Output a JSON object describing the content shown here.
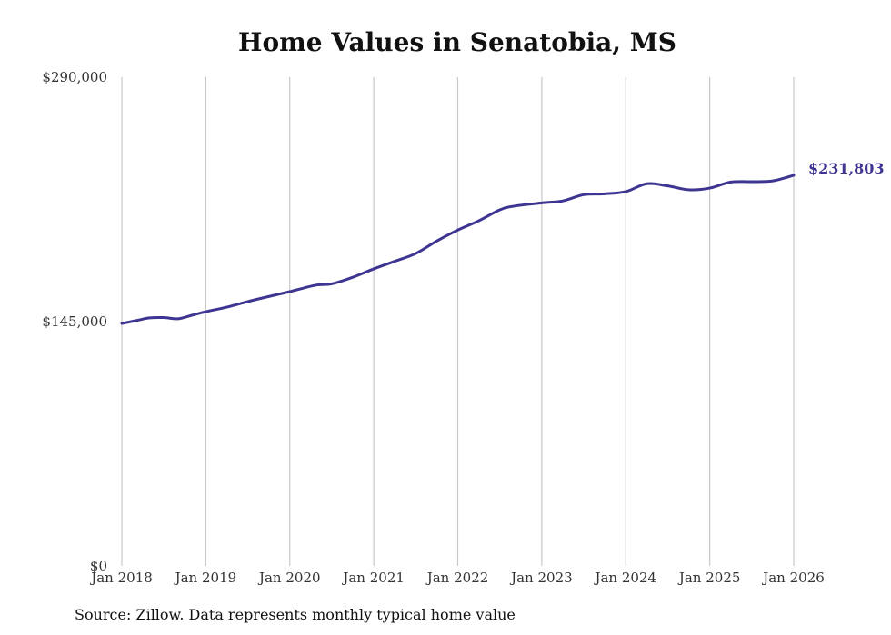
{
  "chart_data": {
    "type": "line",
    "title": "Home Values in Senatobia, MS",
    "source": "Source: Zillow. Data represents monthly typical home value",
    "xlabel": "",
    "ylabel": "",
    "ylim": [
      0,
      290000
    ],
    "xlim": [
      2018.0,
      2026.0
    ],
    "grid": "vertical",
    "yticks": [
      {
        "value": 0,
        "label": "$0"
      },
      {
        "value": 145000,
        "label": "$145,000"
      },
      {
        "value": 290000,
        "label": "$290,000"
      }
    ],
    "xticks": [
      {
        "value": 2018,
        "label": "Jan 2018"
      },
      {
        "value": 2019,
        "label": "Jan 2019"
      },
      {
        "value": 2020,
        "label": "Jan 2020"
      },
      {
        "value": 2021,
        "label": "Jan 2021"
      },
      {
        "value": 2022,
        "label": "Jan 2022"
      },
      {
        "value": 2023,
        "label": "Jan 2023"
      },
      {
        "value": 2024,
        "label": "Jan 2024"
      },
      {
        "value": 2025,
        "label": "Jan 2025"
      },
      {
        "value": 2026,
        "label": "Jan 2026"
      }
    ],
    "series": [
      {
        "name": "Typical home value",
        "color": "#3d3591",
        "end_label": "$231,803",
        "x": [
          2018.0,
          2018.17,
          2018.33,
          2018.5,
          2018.67,
          2018.83,
          2019.0,
          2019.25,
          2019.5,
          2019.75,
          2020.0,
          2020.17,
          2020.33,
          2020.5,
          2020.75,
          2021.0,
          2021.25,
          2021.5,
          2021.75,
          2022.0,
          2022.25,
          2022.5,
          2022.67,
          2023.0,
          2023.25,
          2023.5,
          2023.75,
          2024.0,
          2024.25,
          2024.5,
          2024.75,
          2025.0,
          2025.25,
          2025.5,
          2025.75,
          2026.0
        ],
        "y": [
          143900,
          145600,
          147200,
          147400,
          146700,
          148700,
          150900,
          153600,
          156900,
          159900,
          162800,
          165000,
          166800,
          167400,
          171300,
          176300,
          180800,
          185400,
          192800,
          199300,
          204800,
          211300,
          213500,
          215400,
          216600,
          220300,
          220800,
          222100,
          226800,
          225500,
          223200,
          224200,
          227800,
          228000,
          228500,
          231803
        ]
      }
    ]
  }
}
